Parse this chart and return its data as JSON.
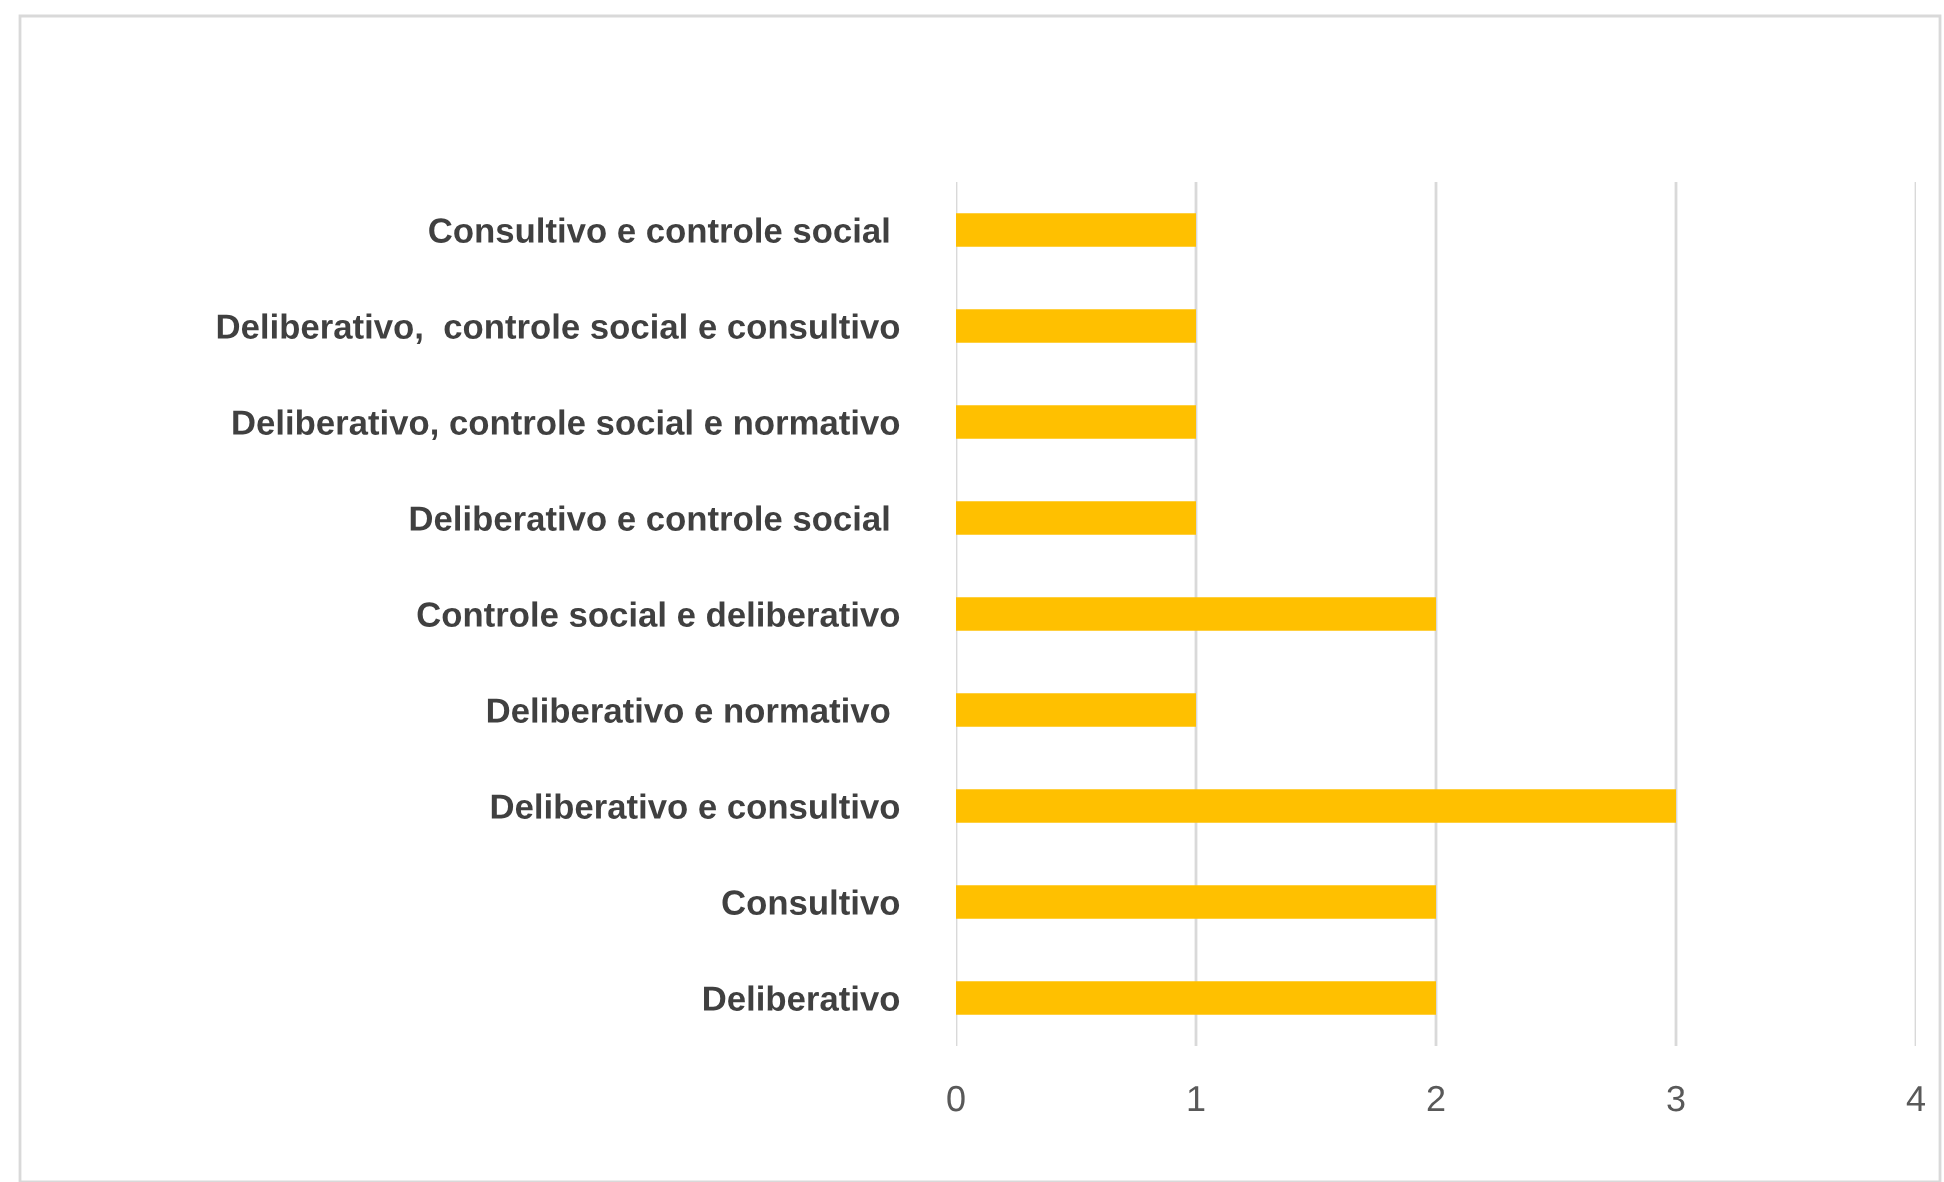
{
  "chart_data": {
    "type": "bar",
    "orientation": "horizontal",
    "categories": [
      "Consultivo e controle social ",
      "Deliberativo,  controle social e consultivo",
      "Deliberativo, controle social e normativo",
      "Deliberativo e controle social ",
      "Controle social e deliberativo",
      "Deliberativo e normativo ",
      "Deliberativo e consultivo",
      "Consultivo",
      "Deliberativo"
    ],
    "values": [
      1,
      1,
      1,
      1,
      2,
      1,
      3,
      2,
      2
    ],
    "color": "#ffc000",
    "xlim": [
      0,
      4
    ],
    "xticks": [
      0,
      1,
      2,
      3,
      4
    ],
    "grid": "x",
    "legend": false
  }
}
